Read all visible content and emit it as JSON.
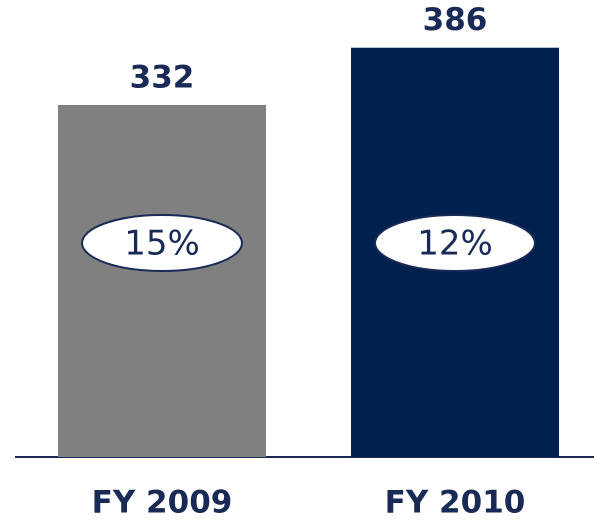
{
  "chart_data": {
    "type": "bar",
    "categories": [
      "FY 2009",
      "FY 2010"
    ],
    "values": [
      332,
      386
    ],
    "colors": [
      "#808080",
      "#00214d"
    ],
    "annotations": [
      "15%",
      "12%"
    ],
    "ylim": [
      0,
      431
    ]
  }
}
